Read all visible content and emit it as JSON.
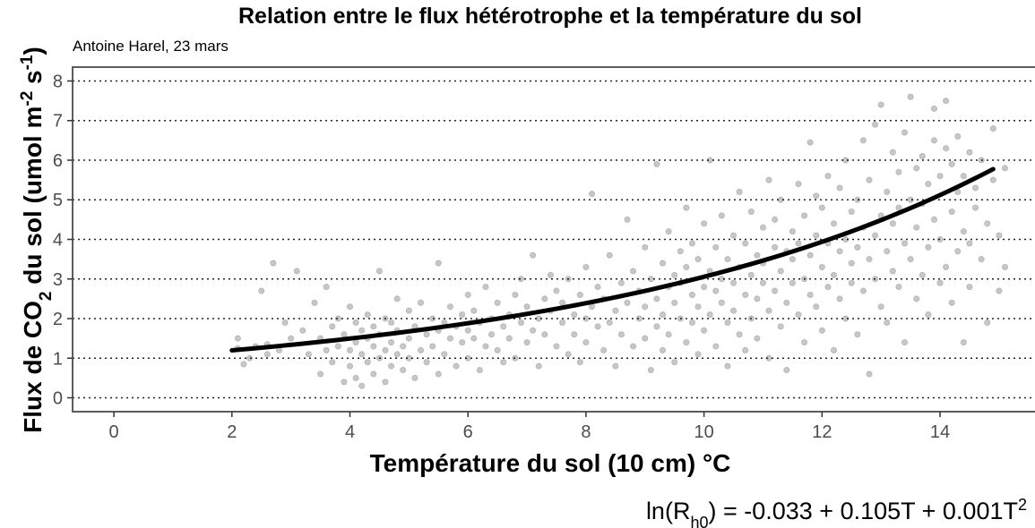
{
  "chart_data": {
    "type": "scatter",
    "title": "Relation entre le flux hétérotrophe et la température du sol",
    "subtitle": "Antoine Harel, 23 mars",
    "xlabel": "Température du sol (10 cm) °C",
    "ylabel": {
      "prefix": "Flux de  CO",
      "sub": "2",
      "middle": " du sol (umol m",
      "sup1": "-2",
      "middle2": " s",
      "sup2": "-1",
      "suffix": ")"
    },
    "xlim": [
      -0.7,
      15.7
    ],
    "ylim": [
      -0.35,
      8.35
    ],
    "x_ticks": [
      0,
      2,
      4,
      6,
      8,
      10,
      12,
      14
    ],
    "y_ticks": [
      0,
      1,
      2,
      3,
      4,
      5,
      6,
      7,
      8
    ],
    "grid": "horizontal dotted",
    "point_color": "#000000",
    "point_alpha": 0.22,
    "fit": {
      "intercept": -0.033,
      "linear": 0.105,
      "quadratic": 0.001,
      "x_range": [
        2.0,
        14.9
      ],
      "color": "#000000"
    },
    "equation": {
      "lhs": "ln(R",
      "lhs_sub": "h0",
      "rhs": ") = -0.033 + 0.105T + 0.001T",
      "rhs_sup": "2"
    },
    "points": [
      [
        2.1,
        1.25
      ],
      [
        2.1,
        1.5
      ],
      [
        2.2,
        0.85
      ],
      [
        2.3,
        1.0
      ],
      [
        2.4,
        1.3
      ],
      [
        2.5,
        2.7
      ],
      [
        2.6,
        1.1
      ],
      [
        2.6,
        1.35
      ],
      [
        2.7,
        3.4
      ],
      [
        2.8,
        1.2
      ],
      [
        2.9,
        1.9
      ],
      [
        3.0,
        1.5
      ],
      [
        3.1,
        3.2
      ],
      [
        3.2,
        1.7
      ],
      [
        3.3,
        1.1
      ],
      [
        3.4,
        2.4
      ],
      [
        3.5,
        0.6
      ],
      [
        3.5,
        1.5
      ],
      [
        3.6,
        2.8
      ],
      [
        3.6,
        1.2
      ],
      [
        3.7,
        0.9
      ],
      [
        3.7,
        1.8
      ],
      [
        3.8,
        1.3
      ],
      [
        3.8,
        2.0
      ],
      [
        3.9,
        0.4
      ],
      [
        3.9,
        1.6
      ],
      [
        4.0,
        1.2
      ],
      [
        4.0,
        0.8
      ],
      [
        4.0,
        2.3
      ],
      [
        4.1,
        1.4
      ],
      [
        4.1,
        0.5
      ],
      [
        4.1,
        1.9
      ],
      [
        4.2,
        1.1
      ],
      [
        4.2,
        1.7
      ],
      [
        4.2,
        0.3
      ],
      [
        4.3,
        1.5
      ],
      [
        4.3,
        0.9
      ],
      [
        4.3,
        2.1
      ],
      [
        4.4,
        1.3
      ],
      [
        4.4,
        0.6
      ],
      [
        4.4,
        1.8
      ],
      [
        4.5,
        1.0
      ],
      [
        4.5,
        1.6
      ],
      [
        4.5,
        3.2
      ],
      [
        4.6,
        1.2
      ],
      [
        4.6,
        0.4
      ],
      [
        4.6,
        2.0
      ],
      [
        4.7,
        1.4
      ],
      [
        4.7,
        0.8
      ],
      [
        4.7,
        1.9
      ],
      [
        4.8,
        1.1
      ],
      [
        4.8,
        1.7
      ],
      [
        4.8,
        2.5
      ],
      [
        4.9,
        1.3
      ],
      [
        4.9,
        0.7
      ],
      [
        5.0,
        1.5
      ],
      [
        5.0,
        2.2
      ],
      [
        5.0,
        1.0
      ],
      [
        5.1,
        0.5
      ],
      [
        5.1,
        1.8
      ],
      [
        5.2,
        1.2
      ],
      [
        5.2,
        2.4
      ],
      [
        5.3,
        1.6
      ],
      [
        5.3,
        0.9
      ],
      [
        5.4,
        2.0
      ],
      [
        5.4,
        1.3
      ],
      [
        5.5,
        1.7
      ],
      [
        5.5,
        0.6
      ],
      [
        5.5,
        3.4
      ],
      [
        5.6,
        1.9
      ],
      [
        5.6,
        1.1
      ],
      [
        5.7,
        2.3
      ],
      [
        5.7,
        1.5
      ],
      [
        5.8,
        1.8
      ],
      [
        5.8,
        0.8
      ],
      [
        5.9,
        2.1
      ],
      [
        5.9,
        1.4
      ],
      [
        6.0,
        1.7
      ],
      [
        6.0,
        2.6
      ],
      [
        6.0,
        1.0
      ],
      [
        6.1,
        1.5
      ],
      [
        6.1,
        2.2
      ],
      [
        6.2,
        1.9
      ],
      [
        6.2,
        0.7
      ],
      [
        6.3,
        1.3
      ],
      [
        6.3,
        2.8
      ],
      [
        6.4,
        1.6
      ],
      [
        6.4,
        2.0
      ],
      [
        6.5,
        1.2
      ],
      [
        6.5,
        2.4
      ],
      [
        6.6,
        1.8
      ],
      [
        6.6,
        0.9
      ],
      [
        6.7,
        2.1
      ],
      [
        6.7,
        1.5
      ],
      [
        6.8,
        2.6
      ],
      [
        6.8,
        1.0
      ],
      [
        6.9,
        1.9
      ],
      [
        6.9,
        3.0
      ],
      [
        7.0,
        1.4
      ],
      [
        7.0,
        2.3
      ],
      [
        7.1,
        1.7
      ],
      [
        7.1,
        3.6
      ],
      [
        7.2,
        2.0
      ],
      [
        7.2,
        0.8
      ],
      [
        7.3,
        2.5
      ],
      [
        7.3,
        1.6
      ],
      [
        7.4,
        2.2
      ],
      [
        7.4,
        3.1
      ],
      [
        7.5,
        1.3
      ],
      [
        7.5,
        2.7
      ],
      [
        7.6,
        1.9
      ],
      [
        7.6,
        2.4
      ],
      [
        7.7,
        1.1
      ],
      [
        7.7,
        3.0
      ],
      [
        7.8,
        2.1
      ],
      [
        7.8,
        1.6
      ],
      [
        7.9,
        2.6
      ],
      [
        7.9,
        0.9
      ],
      [
        8.0,
        2.0
      ],
      [
        8.0,
        3.3
      ],
      [
        8.0,
        1.4
      ],
      [
        8.1,
        5.15
      ],
      [
        8.1,
        2.3
      ],
      [
        8.2,
        1.8
      ],
      [
        8.2,
        2.8
      ],
      [
        8.3,
        1.2
      ],
      [
        8.3,
        2.5
      ],
      [
        8.4,
        3.6
      ],
      [
        8.4,
        1.9
      ],
      [
        8.5,
        2.2
      ],
      [
        8.5,
        0.8
      ],
      [
        8.6,
        2.9
      ],
      [
        8.6,
        1.6
      ],
      [
        8.7,
        4.5
      ],
      [
        8.7,
        2.4
      ],
      [
        8.8,
        1.3
      ],
      [
        8.8,
        3.2
      ],
      [
        8.9,
        2.0
      ],
      [
        8.9,
        2.7
      ],
      [
        9.0,
        3.8
      ],
      [
        9.0,
        1.5
      ],
      [
        9.0,
        2.3
      ],
      [
        9.1,
        0.7
      ],
      [
        9.1,
        3.0
      ],
      [
        9.2,
        2.5
      ],
      [
        9.2,
        1.8
      ],
      [
        9.2,
        5.9
      ],
      [
        9.3,
        3.4
      ],
      [
        9.3,
        2.1
      ],
      [
        9.3,
        1.2
      ],
      [
        9.4,
        2.8
      ],
      [
        9.4,
        4.2
      ],
      [
        9.4,
        1.6
      ],
      [
        9.5,
        3.1
      ],
      [
        9.5,
        2.4
      ],
      [
        9.5,
        0.9
      ],
      [
        9.6,
        3.7
      ],
      [
        9.6,
        2.0
      ],
      [
        9.6,
        2.9
      ],
      [
        9.7,
        1.4
      ],
      [
        9.7,
        3.3
      ],
      [
        9.7,
        4.8
      ],
      [
        9.8,
        2.6
      ],
      [
        9.8,
        1.9
      ],
      [
        9.8,
        3.9
      ],
      [
        9.9,
        2.3
      ],
      [
        9.9,
        1.1
      ],
      [
        9.9,
        3.5
      ],
      [
        10.0,
        2.8
      ],
      [
        10.0,
        4.4
      ],
      [
        10.0,
        1.7
      ],
      [
        10.1,
        3.2
      ],
      [
        10.1,
        2.1
      ],
      [
        10.1,
        6.0
      ],
      [
        10.2,
        2.7
      ],
      [
        10.2,
        3.8
      ],
      [
        10.2,
        1.3
      ],
      [
        10.3,
        3.0
      ],
      [
        10.3,
        4.6
      ],
      [
        10.3,
        2.4
      ],
      [
        10.4,
        1.9
      ],
      [
        10.4,
        3.5
      ],
      [
        10.4,
        0.8
      ],
      [
        10.5,
        2.9
      ],
      [
        10.5,
        4.1
      ],
      [
        10.5,
        2.2
      ],
      [
        10.6,
        3.3
      ],
      [
        10.6,
        1.6
      ],
      [
        10.6,
        5.2
      ],
      [
        10.7,
        2.6
      ],
      [
        10.7,
        3.9
      ],
      [
        10.7,
        1.2
      ],
      [
        10.8,
        3.1
      ],
      [
        10.8,
        4.7
      ],
      [
        10.8,
        2.0
      ],
      [
        10.9,
        3.6
      ],
      [
        10.9,
        2.5
      ],
      [
        10.9,
        1.5
      ],
      [
        11.0,
        2.9
      ],
      [
        11.0,
        4.3
      ],
      [
        11.0,
        3.4
      ],
      [
        11.1,
        2.2
      ],
      [
        11.1,
        5.5
      ],
      [
        11.1,
        1.0
      ],
      [
        11.2,
        3.8
      ],
      [
        11.2,
        2.7
      ],
      [
        11.2,
        4.5
      ],
      [
        11.3,
        3.2
      ],
      [
        11.3,
        1.8
      ],
      [
        11.3,
        5.0
      ],
      [
        11.4,
        2.4
      ],
      [
        11.4,
        3.7
      ],
      [
        11.4,
        0.7
      ],
      [
        11.5,
        4.2
      ],
      [
        11.5,
        2.9
      ],
      [
        11.5,
        3.5
      ],
      [
        11.6,
        5.4
      ],
      [
        11.6,
        2.1
      ],
      [
        11.6,
        3.9
      ],
      [
        11.7,
        1.4
      ],
      [
        11.7,
        4.6
      ],
      [
        11.7,
        3.0
      ],
      [
        11.8,
        2.6
      ],
      [
        11.8,
        6.45
      ],
      [
        11.8,
        3.6
      ],
      [
        11.9,
        4.1
      ],
      [
        11.9,
        2.3
      ],
      [
        11.9,
        5.1
      ],
      [
        12.0,
        3.3
      ],
      [
        12.0,
        1.7
      ],
      [
        12.0,
        4.8
      ],
      [
        12.1,
        2.8
      ],
      [
        12.1,
        3.9
      ],
      [
        12.1,
        5.6
      ],
      [
        12.2,
        3.1
      ],
      [
        12.2,
        4.4
      ],
      [
        12.2,
        1.2
      ],
      [
        12.3,
        3.7
      ],
      [
        12.3,
        2.5
      ],
      [
        12.3,
        5.3
      ],
      [
        12.4,
        4.0
      ],
      [
        12.4,
        2.0
      ],
      [
        12.4,
        6.0
      ],
      [
        12.5,
        3.4
      ],
      [
        12.5,
        4.7
      ],
      [
        12.5,
        2.9
      ],
      [
        12.6,
        5.0
      ],
      [
        12.6,
        3.8
      ],
      [
        12.6,
        1.6
      ],
      [
        12.7,
        4.3
      ],
      [
        12.7,
        6.5
      ],
      [
        12.7,
        2.7
      ],
      [
        12.8,
        3.5
      ],
      [
        12.8,
        5.5
      ],
      [
        12.8,
        0.6
      ],
      [
        12.9,
        4.1
      ],
      [
        12.9,
        3.0
      ],
      [
        12.9,
        6.9
      ],
      [
        13.0,
        4.6
      ],
      [
        13.0,
        2.3
      ],
      [
        13.0,
        7.4
      ],
      [
        13.1,
        3.7
      ],
      [
        13.1,
        5.2
      ],
      [
        13.1,
        1.9
      ],
      [
        13.2,
        4.4
      ],
      [
        13.2,
        6.2
      ],
      [
        13.2,
        3.2
      ],
      [
        13.3,
        5.7
      ],
      [
        13.3,
        2.8
      ],
      [
        13.3,
        4.8
      ],
      [
        13.4,
        3.9
      ],
      [
        13.4,
        6.7
      ],
      [
        13.4,
        1.4
      ],
      [
        13.5,
        5.0
      ],
      [
        13.5,
        3.5
      ],
      [
        13.5,
        7.6
      ],
      [
        13.6,
        4.3
      ],
      [
        13.6,
        2.5
      ],
      [
        13.6,
        5.8
      ],
      [
        13.7,
        3.1
      ],
      [
        13.7,
        6.1
      ],
      [
        13.7,
        4.9
      ],
      [
        13.8,
        2.1
      ],
      [
        13.8,
        5.4
      ],
      [
        13.8,
        3.8
      ],
      [
        13.9,
        6.5
      ],
      [
        13.9,
        4.5
      ],
      [
        13.9,
        7.3
      ],
      [
        14.0,
        2.9
      ],
      [
        14.0,
        5.6
      ],
      [
        14.0,
        4.0
      ],
      [
        14.1,
        6.3
      ],
      [
        14.1,
        3.3
      ],
      [
        14.1,
        7.5
      ],
      [
        14.2,
        4.7
      ],
      [
        14.2,
        5.9
      ],
      [
        14.2,
        2.4
      ],
      [
        14.3,
        3.7
      ],
      [
        14.3,
        5.2
      ],
      [
        14.3,
        6.6
      ],
      [
        14.4,
        4.2
      ],
      [
        14.4,
        1.4
      ],
      [
        14.4,
        5.6
      ],
      [
        14.5,
        3.9
      ],
      [
        14.5,
        6.2
      ],
      [
        14.5,
        2.8
      ],
      [
        14.6,
        4.8
      ],
      [
        14.6,
        5.3
      ],
      [
        14.7,
        3.5
      ],
      [
        14.7,
        6.0
      ],
      [
        14.8,
        4.4
      ],
      [
        14.8,
        1.9
      ],
      [
        14.9,
        5.5
      ],
      [
        14.9,
        6.8
      ],
      [
        15.0,
        4.1
      ],
      [
        15.0,
        2.7
      ],
      [
        15.1,
        5.8
      ],
      [
        15.1,
        3.3
      ]
    ]
  }
}
